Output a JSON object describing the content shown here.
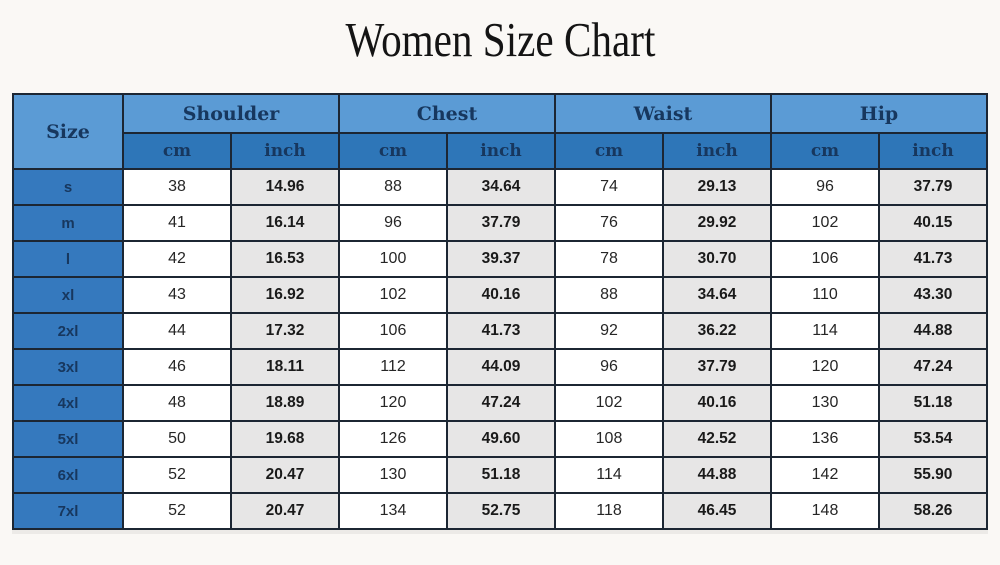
{
  "page": {
    "title": "Women Size Chart"
  },
  "table": {
    "size_header": "Size",
    "groups": [
      {
        "label": "Shoulder"
      },
      {
        "label": "Chest"
      },
      {
        "label": "Waist"
      },
      {
        "label": "Hip"
      }
    ],
    "unit_headers": [
      "cm",
      "inch"
    ],
    "rows": [
      {
        "size": "s",
        "values": [
          "38",
          "14.96",
          "88",
          "34.64",
          "74",
          "29.13",
          "96",
          "37.79"
        ]
      },
      {
        "size": "m",
        "values": [
          "41",
          "16.14",
          "96",
          "37.79",
          "76",
          "29.92",
          "102",
          "40.15"
        ]
      },
      {
        "size": "l",
        "values": [
          "42",
          "16.53",
          "100",
          "39.37",
          "78",
          "30.70",
          "106",
          "41.73"
        ]
      },
      {
        "size": "xl",
        "values": [
          "43",
          "16.92",
          "102",
          "40.16",
          "88",
          "34.64",
          "110",
          "43.30"
        ]
      },
      {
        "size": "2xl",
        "values": [
          "44",
          "17.32",
          "106",
          "41.73",
          "92",
          "36.22",
          "114",
          "44.88"
        ]
      },
      {
        "size": "3xl",
        "values": [
          "46",
          "18.11",
          "112",
          "44.09",
          "96",
          "37.79",
          "120",
          "47.24"
        ]
      },
      {
        "size": "4xl",
        "values": [
          "48",
          "18.89",
          "120",
          "47.24",
          "102",
          "40.16",
          "130",
          "51.18"
        ]
      },
      {
        "size": "5xl",
        "values": [
          "50",
          "19.68",
          "126",
          "49.60",
          "108",
          "42.52",
          "136",
          "53.54"
        ]
      },
      {
        "size": "6xl",
        "values": [
          "52",
          "20.47",
          "130",
          "51.18",
          "114",
          "44.88",
          "142",
          "55.90"
        ]
      },
      {
        "size": "7xl",
        "values": [
          "52",
          "20.47",
          "134",
          "52.75",
          "118",
          "46.45",
          "148",
          "58.26"
        ]
      }
    ]
  },
  "colors": {
    "page_bg": "#faf8f5",
    "group_header_bg": "#5b9bd5",
    "unit_header_bg": "#2e76b8",
    "size_cell_bg": "#3579be",
    "header_text": "#17375e",
    "cm_cell_bg": "#ffffff",
    "inch_cell_bg": "#e7e6e6",
    "border": "#1c2633"
  }
}
